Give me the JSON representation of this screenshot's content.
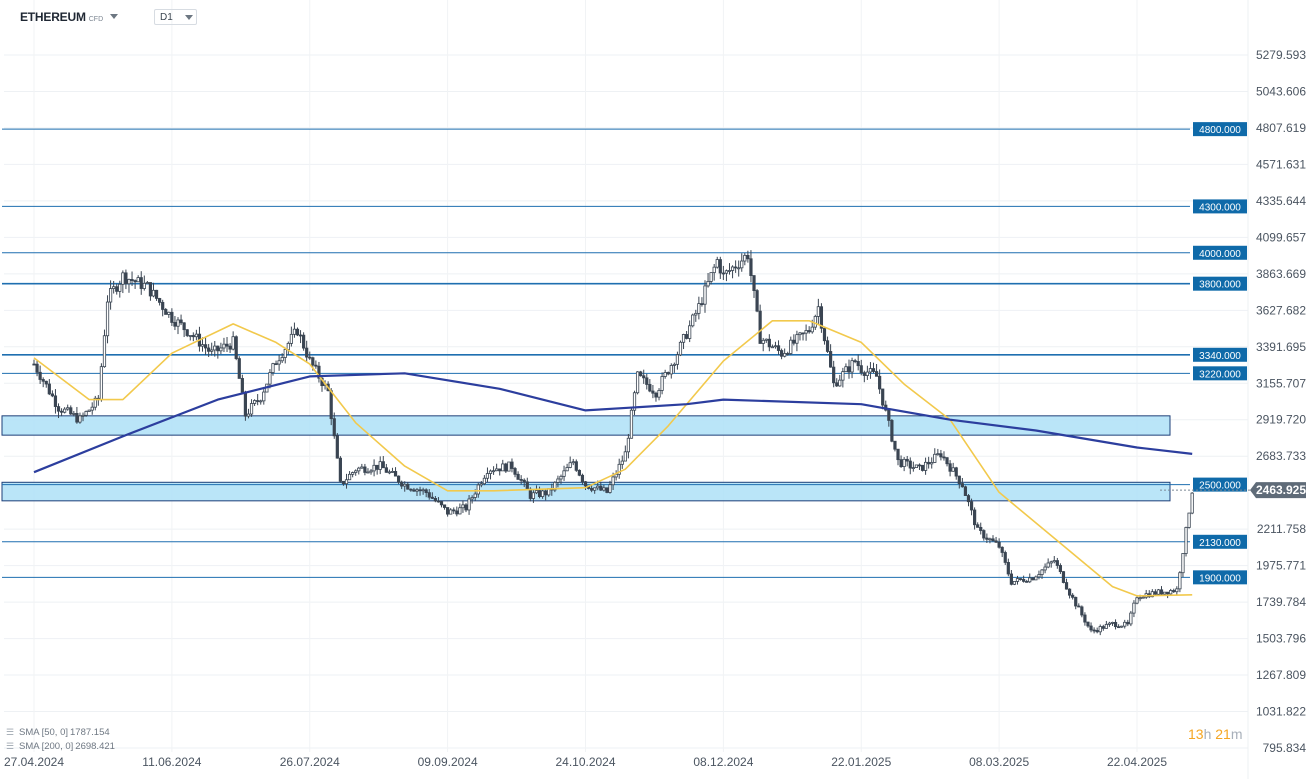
{
  "header": {
    "instrument_name": "ETHEREUM",
    "instrument_type": "CFD",
    "timeframe": "D1"
  },
  "legend": [
    {
      "label": "SMA",
      "params": "[50, 0]",
      "value": "1787.154",
      "color": "#f2c94c"
    },
    {
      "label": "SMA",
      "params": "[200, 0]",
      "value": "2698.421",
      "color": "#2c3e9e"
    }
  ],
  "countdown": {
    "hours": "13",
    "h_unit": "h",
    "minutes": "21",
    "m_unit": "m"
  },
  "chart_data": {
    "type": "candlestick",
    "title": "",
    "xlabel": "",
    "ylabel": "",
    "ylim": [
      795.834,
      5400
    ],
    "y_ticks": [
      "5279.593",
      "5043.606",
      "4807.619",
      "4571.631",
      "4335.644",
      "4099.657",
      "3863.669",
      "3627.682",
      "3391.695",
      "3155.707",
      "2919.720",
      "2683.733",
      "2211.758",
      "1975.771",
      "1739.784",
      "1503.796",
      "1267.809",
      "1031.822",
      "795.834"
    ],
    "x_ticks": [
      "27.04.2024",
      "11.06.2024",
      "26.07.2024",
      "09.09.2024",
      "24.10.2024",
      "08.12.2024",
      "22.01.2025",
      "08.03.2025",
      "22.04.2025"
    ],
    "current_price": "2463.925",
    "current_price_value": 2463.925,
    "horizontal_levels": [
      {
        "label": "4800.000",
        "value": 4800
      },
      {
        "label": "4300.000",
        "value": 4300
      },
      {
        "label": "4000.000",
        "value": 4000
      },
      {
        "label": "3800.000",
        "value": 3800
      },
      {
        "label": "3340.000",
        "value": 3340
      },
      {
        "label": "3220.000",
        "value": 3220
      },
      {
        "label": "2500.000",
        "value": 2500
      },
      {
        "label": "2130.000",
        "value": 2130
      },
      {
        "label": "1900.000",
        "value": 1900
      }
    ],
    "zones": [
      {
        "from": 2820,
        "to": 2945
      },
      {
        "from": 2395,
        "to": 2515
      }
    ],
    "close_path": [
      [
        "27.04.2024",
        3280
      ],
      [
        "05.05.2024",
        3000
      ],
      [
        "12.05.2024",
        2920
      ],
      [
        "18.05.2024",
        3050
      ],
      [
        "21.05.2024",
        3700
      ],
      [
        "26.05.2024",
        3850
      ],
      [
        "03.06.2024",
        3780
      ],
      [
        "11.06.2024",
        3580
      ],
      [
        "17.06.2024",
        3480
      ],
      [
        "24.06.2024",
        3350
      ],
      [
        "01.07.2024",
        3420
      ],
      [
        "05.07.2024",
        2950
      ],
      [
        "10.07.2024",
        3070
      ],
      [
        "15.07.2024",
        3300
      ],
      [
        "22.07.2024",
        3500
      ],
      [
        "26.07.2024",
        3300
      ],
      [
        "01.08.2024",
        3100
      ],
      [
        "05.08.2024",
        2500
      ],
      [
        "10.08.2024",
        2600
      ],
      [
        "18.08.2024",
        2620
      ],
      [
        "26.08.2024",
        2500
      ],
      [
        "02.09.2024",
        2450
      ],
      [
        "09.09.2024",
        2320
      ],
      [
        "15.09.2024",
        2350
      ],
      [
        "22.09.2024",
        2600
      ],
      [
        "30.09.2024",
        2620
      ],
      [
        "06.10.2024",
        2430
      ],
      [
        "12.10.2024",
        2450
      ],
      [
        "20.10.2024",
        2650
      ],
      [
        "24.10.2024",
        2500
      ],
      [
        "31.10.2024",
        2450
      ],
      [
        "06.11.2024",
        2700
      ],
      [
        "10.11.2024",
        3200
      ],
      [
        "16.11.2024",
        3100
      ],
      [
        "23.11.2024",
        3350
      ],
      [
        "30.11.2024",
        3650
      ],
      [
        "06.12.2024",
        3950
      ],
      [
        "08.12.2024",
        3850
      ],
      [
        "16.12.2024",
        3990
      ],
      [
        "20.12.2024",
        3450
      ],
      [
        "27.12.2024",
        3350
      ],
      [
        "05.01.2025",
        3500
      ],
      [
        "08.01.2025",
        3650
      ],
      [
        "13.01.2025",
        3150
      ],
      [
        "20.01.2025",
        3300
      ],
      [
        "22.01.2025",
        3250
      ],
      [
        "27.01.2025",
        3200
      ],
      [
        "03.02.2025",
        2650
      ],
      [
        "10.02.2025",
        2600
      ],
      [
        "17.02.2025",
        2700
      ],
      [
        "24.02.2025",
        2500
      ],
      [
        "01.03.2025",
        2200
      ],
      [
        "08.03.2025",
        2100
      ],
      [
        "12.03.2025",
        1870
      ],
      [
        "19.03.2025",
        1900
      ],
      [
        "26.03.2025",
        2010
      ],
      [
        "31.03.2025",
        1800
      ],
      [
        "07.04.2025",
        1550
      ],
      [
        "14.04.2025",
        1600
      ],
      [
        "19.04.2025",
        1590
      ],
      [
        "22.04.2025",
        1780
      ],
      [
        "28.04.2025",
        1800
      ],
      [
        "05.05.2025",
        1820
      ],
      [
        "08.05.2025",
        2200
      ],
      [
        "10.05.2025",
        2463.925
      ]
    ],
    "series": [
      {
        "name": "SMA [50, 0]",
        "color": "#f2c94c",
        "points": [
          [
            "27.04.2024",
            3320
          ],
          [
            "15.05.2024",
            3050
          ],
          [
            "26.05.2024",
            3050
          ],
          [
            "11.06.2024",
            3350
          ],
          [
            "01.07.2024",
            3540
          ],
          [
            "15.07.2024",
            3420
          ],
          [
            "26.07.2024",
            3280
          ],
          [
            "10.08.2024",
            2900
          ],
          [
            "26.08.2024",
            2620
          ],
          [
            "09.09.2024",
            2460
          ],
          [
            "24.09.2024",
            2460
          ],
          [
            "24.10.2024",
            2480
          ],
          [
            "06.11.2024",
            2600
          ],
          [
            "20.11.2024",
            2880
          ],
          [
            "08.12.2024",
            3300
          ],
          [
            "24.12.2024",
            3560
          ],
          [
            "05.01.2025",
            3560
          ],
          [
            "22.01.2025",
            3420
          ],
          [
            "05.02.2025",
            3150
          ],
          [
            "20.02.2025",
            2920
          ],
          [
            "08.03.2025",
            2450
          ],
          [
            "28.03.2025",
            2120
          ],
          [
            "14.04.2025",
            1840
          ],
          [
            "22.04.2025",
            1780
          ],
          [
            "10.05.2025",
            1787.154
          ]
        ]
      },
      {
        "name": "SMA [200, 0]",
        "color": "#2c3e9e",
        "points": [
          [
            "27.04.2024",
            2580
          ],
          [
            "27.05.2024",
            2820
          ],
          [
            "26.06.2024",
            3050
          ],
          [
            "26.07.2024",
            3200
          ],
          [
            "26.08.2024",
            3220
          ],
          [
            "26.09.2024",
            3120
          ],
          [
            "24.10.2024",
            2980
          ],
          [
            "26.11.2024",
            3020
          ],
          [
            "08.12.2024",
            3050
          ],
          [
            "22.01.2025",
            3020
          ],
          [
            "20.02.2025",
            2920
          ],
          [
            "20.03.2025",
            2850
          ],
          [
            "22.04.2025",
            2740
          ],
          [
            "10.05.2025",
            2698.421
          ]
        ]
      }
    ],
    "grid": true,
    "legend_position": "bottom-left"
  }
}
